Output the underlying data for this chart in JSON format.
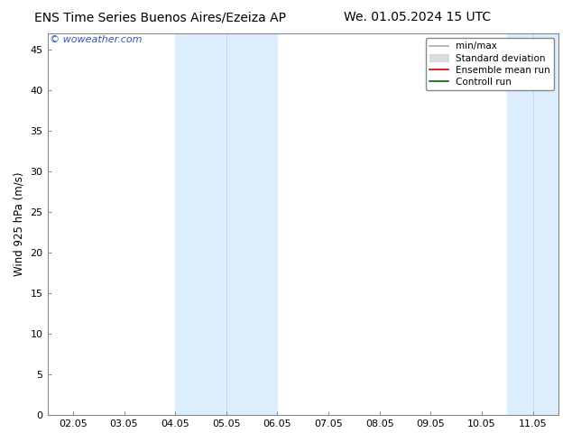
{
  "title_left": "ENS Time Series Buenos Aires/Ezeiza AP",
  "title_right": "We. 01.05.2024 15 UTC",
  "ylabel": "Wind 925 hPa (m/s)",
  "watermark": "© woweather.com",
  "x_ticks": [
    "02.05",
    "03.05",
    "04.05",
    "05.05",
    "06.05",
    "07.05",
    "08.05",
    "09.05",
    "10.05",
    "11.05"
  ],
  "ylim": [
    0,
    47
  ],
  "yticks": [
    0,
    5,
    10,
    15,
    20,
    25,
    30,
    35,
    40,
    45
  ],
  "background_color": "#ffffff",
  "plot_bg_color": "#ffffff",
  "shaded_col": "#ddeeff",
  "band1_start": 2,
  "band1_mid": 3,
  "band1_end": 4,
  "band2_start": 8.5,
  "band2_mid": 9,
  "band2_end": 9.5,
  "legend_items": [
    {
      "label": "min/max",
      "color": "#aaaaaa",
      "lw": 1.2
    },
    {
      "label": "Standard deviation",
      "color": "#cccccc",
      "lw": 5
    },
    {
      "label": "Ensemble mean run",
      "color": "#cc0000",
      "lw": 1.2
    },
    {
      "label": "Controll run",
      "color": "#006600",
      "lw": 1.2
    }
  ],
  "title_fontsize": 10,
  "ylabel_fontsize": 8.5,
  "watermark_color": "#3355bb",
  "tick_label_fontsize": 8,
  "legend_fontsize": 7.5,
  "xlim_left": -0.5,
  "xlim_right": 9.5
}
